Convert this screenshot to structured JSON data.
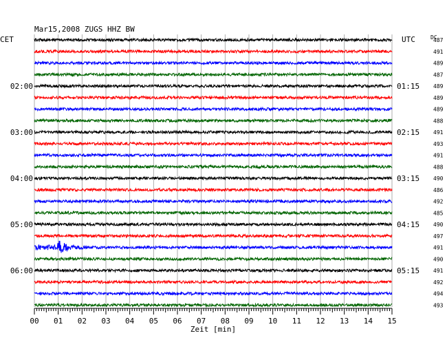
{
  "header": {
    "title": "Mar15,2008   ZUGS HHZ BW",
    "left_tz": "CET",
    "right_tz": "UTC",
    "dc_label": "DC"
  },
  "chart_data": {
    "type": "line",
    "title": "Mar15,2008   ZUGS HHZ BW",
    "xlabel": "Zeit [min]",
    "ylabel": "",
    "xlim": [
      0,
      15
    ],
    "x_ticks": [
      "00",
      "01",
      "02",
      "03",
      "04",
      "05",
      "06",
      "07",
      "08",
      "09",
      "10",
      "11",
      "12",
      "13",
      "14",
      "15"
    ],
    "trace_count": 24,
    "trace_colors": [
      "#000000",
      "#ff0000",
      "#0000ff",
      "#006400"
    ],
    "left_hour_labels": [
      {
        "trace": 4,
        "label": "02:00"
      },
      {
        "trace": 8,
        "label": "03:00"
      },
      {
        "trace": 12,
        "label": "04:00"
      },
      {
        "trace": 16,
        "label": "05:00"
      },
      {
        "trace": 20,
        "label": "06:00"
      }
    ],
    "right_hour_labels": [
      {
        "trace": 4,
        "label": "01:15"
      },
      {
        "trace": 8,
        "label": "02:15"
      },
      {
        "trace": 12,
        "label": "03:15"
      },
      {
        "trace": 16,
        "label": "04:15"
      },
      {
        "trace": 20,
        "label": "05:15"
      }
    ],
    "dc_values": [
      "487",
      "491",
      "489",
      "487",
      "489",
      "489",
      "489",
      "488",
      "491",
      "493",
      "491",
      "488",
      "490",
      "486",
      "492",
      "485",
      "490",
      "497",
      "491",
      "490",
      "491",
      "492",
      "494",
      "493"
    ],
    "events": [
      {
        "trace": 18,
        "onset_min": 0.9,
        "peak_min": 1.05,
        "duration_min": 1.3
      }
    ]
  }
}
